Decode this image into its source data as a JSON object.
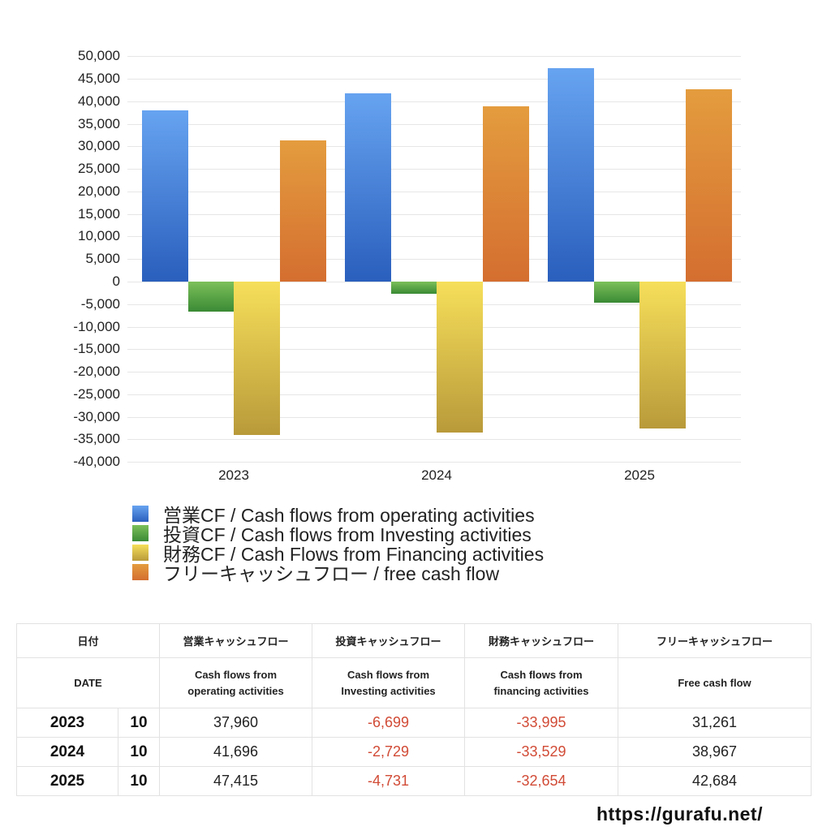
{
  "chart_data": {
    "type": "bar",
    "title": "",
    "xlabel": "",
    "ylabel": "",
    "categories": [
      "2023",
      "2024",
      "2025"
    ],
    "series": [
      {
        "name": "営業CF / Cash flows from operating activities",
        "values": [
          37960,
          41696,
          47415
        ],
        "color_top": "#66a3f0",
        "color_bottom": "#2a5fbd"
      },
      {
        "name": "投資CF / Cash flows from Investing activities",
        "values": [
          -6699,
          -2729,
          -4731
        ],
        "color_top": "#7cc05a",
        "color_bottom": "#3a8a35"
      },
      {
        "name": "財務CF / Cash Flows from Financing activities",
        "values": [
          -33995,
          -33529,
          -32654
        ],
        "color_top": "#f6df5a",
        "color_bottom": "#b99a3a"
      },
      {
        "name": "フリーキャッシュフロー / free cash flow",
        "values": [
          31261,
          38967,
          42684
        ],
        "color_top": "#e49c3e",
        "color_bottom": "#d46e30"
      }
    ],
    "ylim": [
      -40000,
      50000
    ],
    "yticks": [
      "50,000",
      "45,000",
      "40,000",
      "35,000",
      "30,000",
      "25,000",
      "20,000",
      "15,000",
      "10,000",
      "5,000",
      "0",
      "-5,000",
      "-10,000",
      "-15,000",
      "-20,000",
      "-25,000",
      "-30,000",
      "-35,000",
      "-40,000"
    ],
    "grid": true,
    "legend_position": "bottom"
  },
  "legend": {
    "items": [
      {
        "label": "営業CF / Cash flows from operating activities"
      },
      {
        "label": "投資CF / Cash flows from Investing activities"
      },
      {
        "label": "財務CF / Cash Flows from Financing activities"
      },
      {
        "label": "フリーキャッシュフロー / free cash flow"
      }
    ]
  },
  "table": {
    "header_jp": [
      "日付",
      "",
      "営業キャッシュフロー",
      "投資キャッシュフロー",
      "財務キャッシュフロー",
      "フリーキャッシュフロー"
    ],
    "header_en": [
      "DATE",
      "",
      "Cash flows from\noperating activities",
      "Cash flows from\nInvesting activities",
      "Cash flows from\nfinancing activities",
      "Free cash flow"
    ],
    "rows": [
      {
        "year": "2023",
        "month": "10",
        "operating": "37,960",
        "investing": "-6,699",
        "financing": "-33,995",
        "free": "31,261"
      },
      {
        "year": "2024",
        "month": "10",
        "operating": "41,696",
        "investing": "-2,729",
        "financing": "-33,529",
        "free": "38,967"
      },
      {
        "year": "2025",
        "month": "10",
        "operating": "47,415",
        "investing": "-4,731",
        "financing": "-32,654",
        "free": "42,684"
      }
    ],
    "negative_color": "#d14b36"
  },
  "footer": {
    "url_text": "https://gurafu.net/"
  }
}
